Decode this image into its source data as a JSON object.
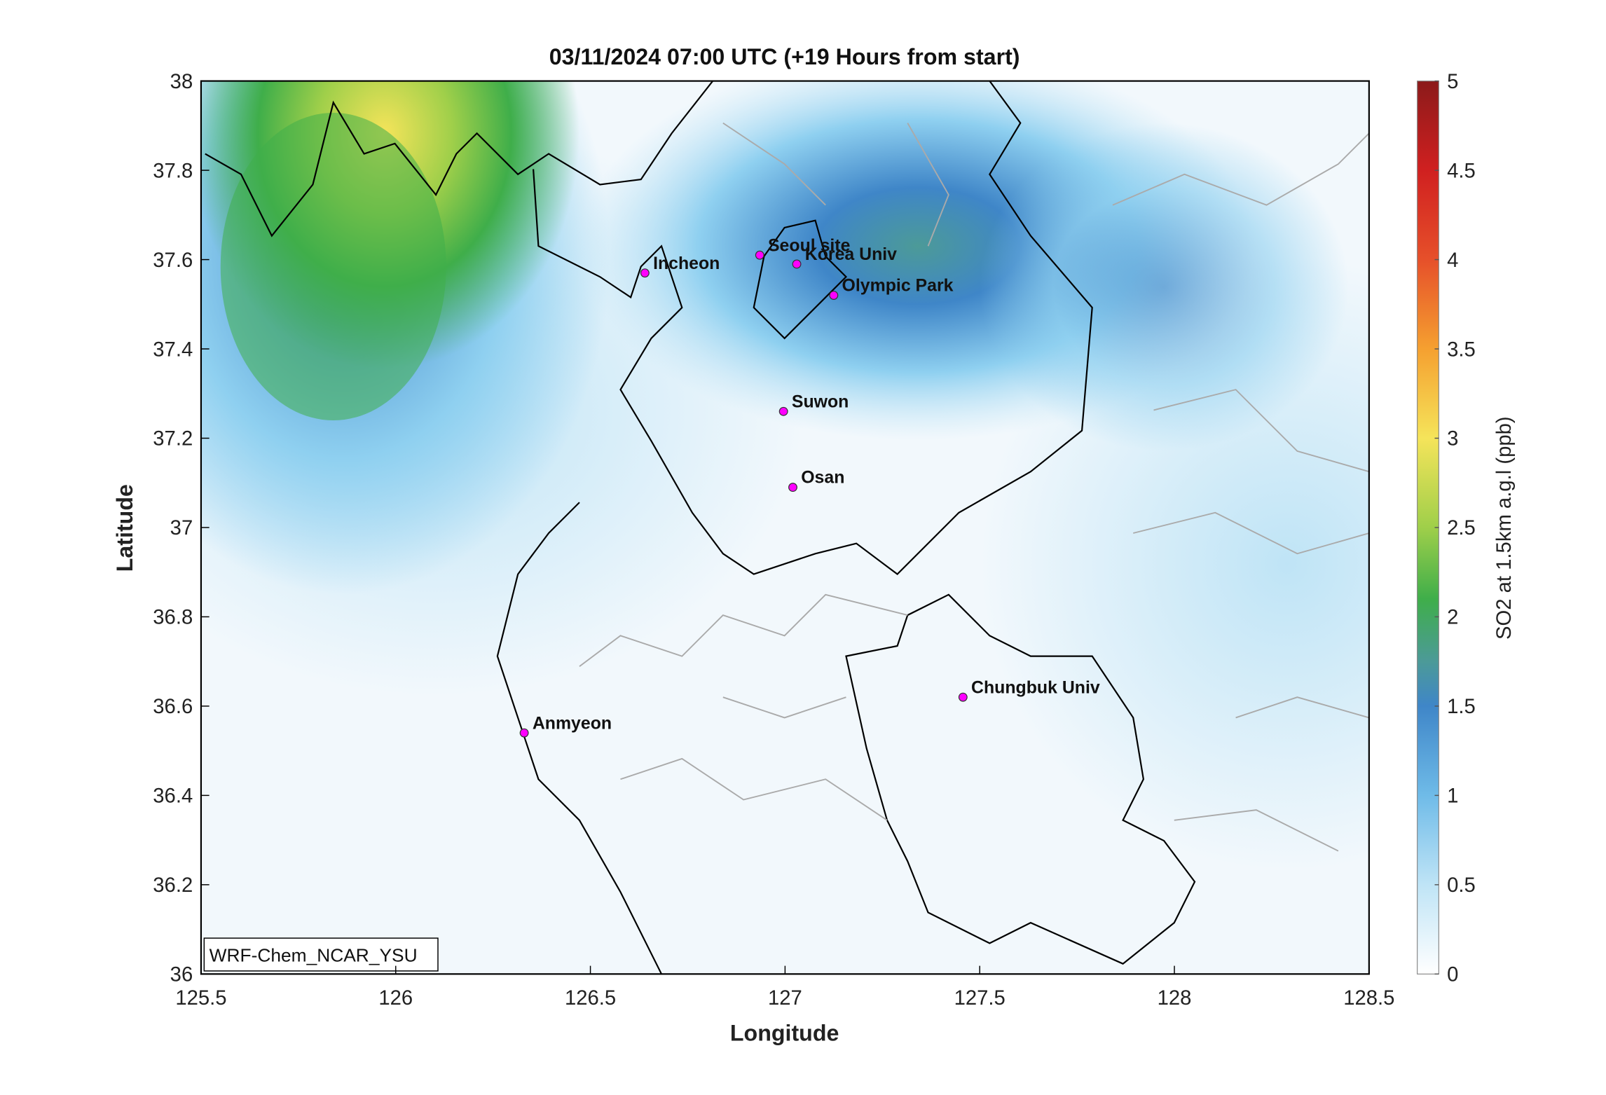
{
  "title": "03/11/2024 07:00 UTC (+19 Hours from start)",
  "xlabel": "Longitude",
  "ylabel": "Latitude",
  "colorbar_label": "SO2 at 1.5km a.g.l (ppb)",
  "model_label": "WRF-Chem_NCAR_YSU",
  "x_ticks": [
    "125.5",
    "126",
    "126.5",
    "127",
    "127.5",
    "128",
    "128.5"
  ],
  "y_ticks": [
    "36",
    "36.2",
    "36.4",
    "36.6",
    "36.8",
    "37",
    "37.2",
    "37.4",
    "37.6",
    "37.8",
    "38"
  ],
  "colorbar_ticks": [
    "0",
    "0.5",
    "1",
    "1.5",
    "2",
    "2.5",
    "3",
    "3.5",
    "4",
    "4.5",
    "5"
  ],
  "chart_data": {
    "type": "heatmap",
    "title": "03/11/2024 07:00 UTC (+19 Hours from start)",
    "xlabel": "Longitude",
    "ylabel": "Latitude",
    "xlim": [
      125.5,
      128.5
    ],
    "ylim": [
      36,
      38
    ],
    "clim": [
      0,
      5
    ],
    "colorbar_label": "SO2 at 1.5km a.g.l (ppb)",
    "hotspots": [
      {
        "lon": 126.0,
        "lat": 37.95,
        "value": 3.0
      },
      {
        "lon": 125.9,
        "lat": 37.6,
        "value": 2.0
      },
      {
        "lon": 127.3,
        "lat": 37.7,
        "value": 1.6
      },
      {
        "lon": 127.4,
        "lat": 37.5,
        "value": 1.2
      }
    ],
    "stations": [
      {
        "name": "Seoul site",
        "lon": 126.935,
        "lat": 37.61
      },
      {
        "name": "Korea Univ",
        "lon": 127.03,
        "lat": 37.59
      },
      {
        "name": "Olympic Park",
        "lon": 127.125,
        "lat": 37.52
      },
      {
        "name": "Incheon",
        "lon": 126.64,
        "lat": 37.57
      },
      {
        "name": "Suwon",
        "lon": 126.996,
        "lat": 37.26
      },
      {
        "name": "Osan",
        "lon": 127.02,
        "lat": 37.09
      },
      {
        "name": "Chungbuk Univ",
        "lon": 127.457,
        "lat": 36.62
      },
      {
        "name": "Anmyeon",
        "lon": 126.33,
        "lat": 36.54
      }
    ]
  }
}
